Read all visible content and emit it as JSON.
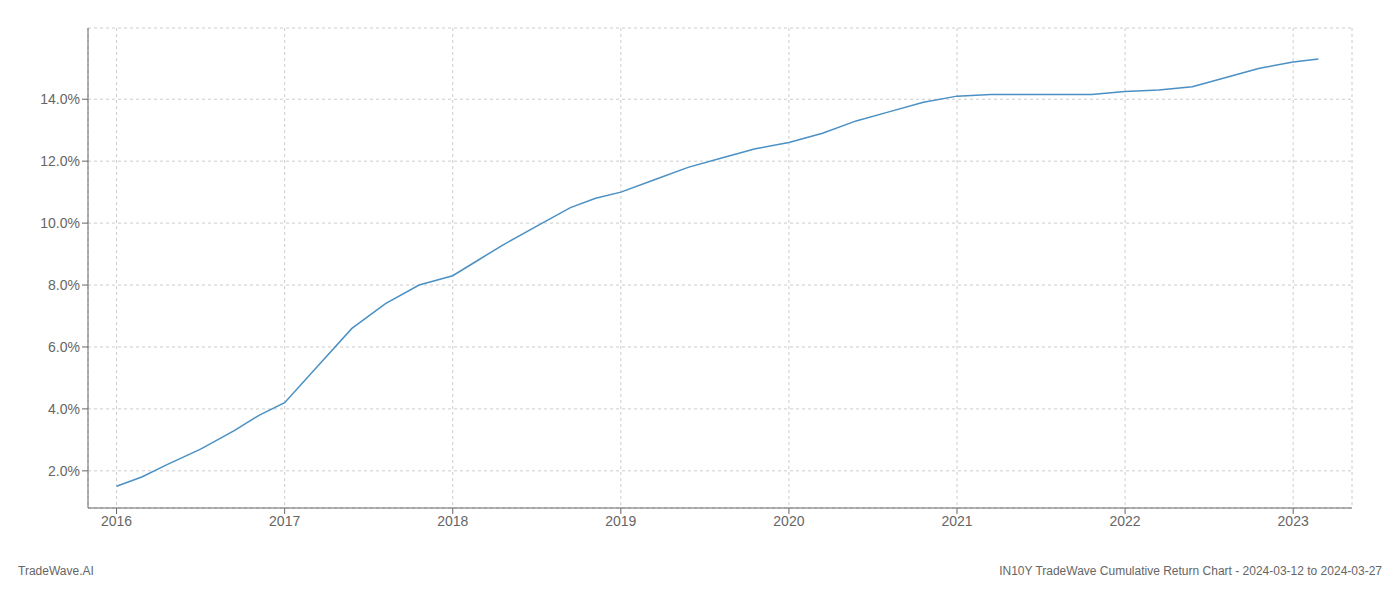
{
  "chart_data": {
    "type": "line",
    "x": [
      2016.0,
      2016.15,
      2016.3,
      2016.5,
      2016.7,
      2016.85,
      2017.0,
      2017.2,
      2017.4,
      2017.6,
      2017.8,
      2018.0,
      2018.15,
      2018.3,
      2018.5,
      2018.7,
      2018.85,
      2019.0,
      2019.2,
      2019.4,
      2019.6,
      2019.8,
      2020.0,
      2020.2,
      2020.4,
      2020.6,
      2020.8,
      2021.0,
      2021.2,
      2021.4,
      2021.6,
      2021.8,
      2022.0,
      2022.2,
      2022.4,
      2022.6,
      2022.8,
      2023.0,
      2023.15
    ],
    "values": [
      0.015,
      0.018,
      0.022,
      0.027,
      0.033,
      0.038,
      0.042,
      0.054,
      0.066,
      0.074,
      0.08,
      0.083,
      0.088,
      0.093,
      0.099,
      0.105,
      0.108,
      0.11,
      0.114,
      0.118,
      0.121,
      0.124,
      0.126,
      0.129,
      0.133,
      0.136,
      0.139,
      0.141,
      0.1415,
      0.1415,
      0.1415,
      0.1415,
      0.1425,
      0.143,
      0.144,
      0.147,
      0.15,
      0.152,
      0.153
    ],
    "color": "#4a90c4",
    "xlim": [
      2015.83,
      2023.35
    ],
    "ylim": [
      0.008,
      0.163
    ],
    "xticks": [
      2016,
      2017,
      2018,
      2019,
      2020,
      2021,
      2022,
      2023
    ],
    "yticks": [
      {
        "value": 0.02,
        "label": "2.0%"
      },
      {
        "value": 0.04,
        "label": "4.0%"
      },
      {
        "value": 0.06,
        "label": "6.0%"
      },
      {
        "value": 0.08,
        "label": "8.0%"
      },
      {
        "value": 0.1,
        "label": "10.0%"
      },
      {
        "value": 0.12,
        "label": "12.0%"
      },
      {
        "value": 0.14,
        "label": "14.0%"
      }
    ],
    "grid": true,
    "annotations": [
      "TradeWave.AI",
      "IN10Y TradeWave Cumulative Return Chart - 2024-03-12 to 2024-03-27"
    ]
  }
}
